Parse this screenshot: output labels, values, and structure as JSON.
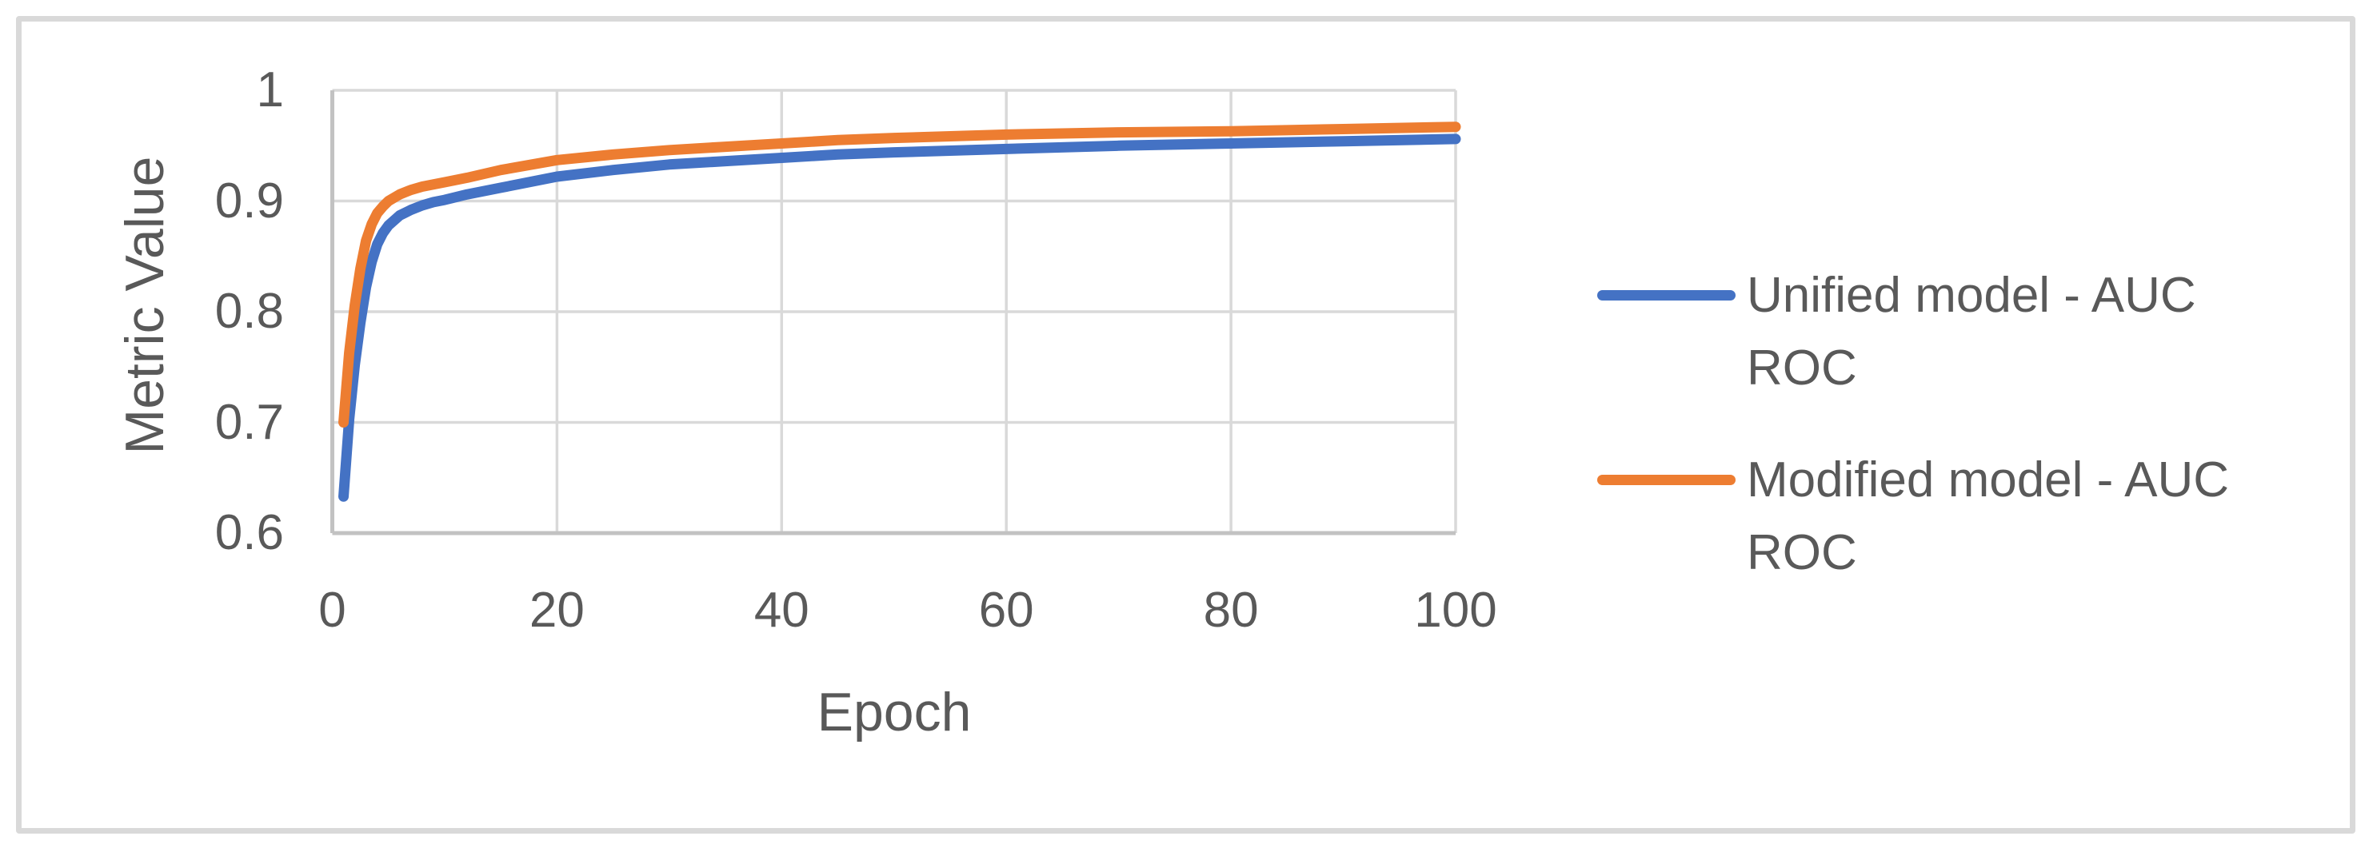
{
  "figure": {
    "background": "#FFFFFF",
    "border_color": "#D9D9D9"
  },
  "chart_data": {
    "type": "line",
    "title": "",
    "xlabel": "Epoch",
    "ylabel": "Metric Value",
    "xlim": [
      0,
      100
    ],
    "ylim": [
      0.6,
      1.0
    ],
    "x_ticks": [
      0,
      20,
      40,
      60,
      80,
      100
    ],
    "x_tick_labels": [
      "0",
      "20",
      "40",
      "60",
      "80",
      "100"
    ],
    "y_ticks": [
      1,
      0.9,
      0.8,
      0.7,
      0.6
    ],
    "y_tick_labels": [
      "1",
      "0.9",
      "0.8",
      "0.7",
      "0.6"
    ],
    "grid": true,
    "grid_color": "#D9D9D9",
    "axis_color": "#C2C2C2",
    "text_color": "#595959",
    "legend_position": "right",
    "series": [
      {
        "name": "Unified model - AUC ROC",
        "color": "#4472C4",
        "points": [
          [
            1,
            0.633
          ],
          [
            1.5,
            0.703
          ],
          [
            2,
            0.752
          ],
          [
            2.5,
            0.79
          ],
          [
            3,
            0.822
          ],
          [
            3.5,
            0.845
          ],
          [
            4,
            0.861
          ],
          [
            4.5,
            0.871
          ],
          [
            5,
            0.878
          ],
          [
            6,
            0.887
          ],
          [
            7,
            0.892
          ],
          [
            8,
            0.896
          ],
          [
            9,
            0.899
          ],
          [
            10,
            0.901
          ],
          [
            12,
            0.906
          ],
          [
            15,
            0.912
          ],
          [
            20,
            0.922
          ],
          [
            25,
            0.928
          ],
          [
            30,
            0.933
          ],
          [
            35,
            0.936
          ],
          [
            40,
            0.939
          ],
          [
            45,
            0.942
          ],
          [
            50,
            0.944
          ],
          [
            60,
            0.947
          ],
          [
            70,
            0.95
          ],
          [
            80,
            0.952
          ],
          [
            90,
            0.954
          ],
          [
            100,
            0.956
          ]
        ]
      },
      {
        "name": "Modified model - AUC ROC",
        "color": "#ED7D31",
        "points": [
          [
            1,
            0.7
          ],
          [
            1.5,
            0.763
          ],
          [
            2,
            0.806
          ],
          [
            2.5,
            0.839
          ],
          [
            3,
            0.864
          ],
          [
            3.5,
            0.879
          ],
          [
            4,
            0.889
          ],
          [
            4.5,
            0.895
          ],
          [
            5,
            0.9
          ],
          [
            6,
            0.906
          ],
          [
            7,
            0.91
          ],
          [
            8,
            0.913
          ],
          [
            9,
            0.915
          ],
          [
            10,
            0.917
          ],
          [
            12,
            0.921
          ],
          [
            15,
            0.928
          ],
          [
            20,
            0.937
          ],
          [
            25,
            0.942
          ],
          [
            30,
            0.946
          ],
          [
            35,
            0.949
          ],
          [
            40,
            0.952
          ],
          [
            45,
            0.955
          ],
          [
            50,
            0.957
          ],
          [
            60,
            0.96
          ],
          [
            70,
            0.962
          ],
          [
            80,
            0.963
          ],
          [
            90,
            0.965
          ],
          [
            100,
            0.967
          ]
        ]
      }
    ]
  }
}
